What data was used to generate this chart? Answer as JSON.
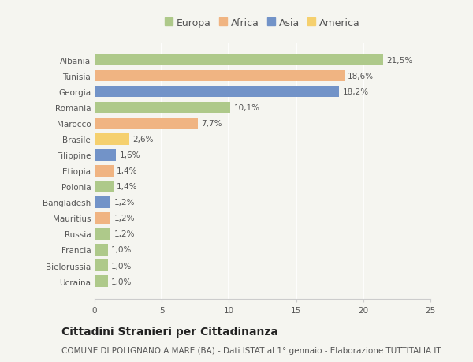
{
  "categories": [
    "Albania",
    "Tunisia",
    "Georgia",
    "Romania",
    "Marocco",
    "Brasile",
    "Filippine",
    "Etiopia",
    "Polonia",
    "Bangladesh",
    "Mauritius",
    "Russia",
    "Francia",
    "Bielorussia",
    "Ucraina"
  ],
  "values": [
    21.5,
    18.6,
    18.2,
    10.1,
    7.7,
    2.6,
    1.6,
    1.4,
    1.4,
    1.2,
    1.2,
    1.2,
    1.0,
    1.0,
    1.0
  ],
  "labels": [
    "21,5%",
    "18,6%",
    "18,2%",
    "10,1%",
    "7,7%",
    "2,6%",
    "1,6%",
    "1,4%",
    "1,4%",
    "1,2%",
    "1,2%",
    "1,2%",
    "1,0%",
    "1,0%",
    "1,0%"
  ],
  "continents": [
    "Europa",
    "Africa",
    "Asia",
    "Europa",
    "Africa",
    "America",
    "Asia",
    "Africa",
    "Europa",
    "Asia",
    "Africa",
    "Europa",
    "Europa",
    "Europa",
    "Europa"
  ],
  "colors": {
    "Europa": "#aec98a",
    "Africa": "#f0b482",
    "Asia": "#7293c8",
    "America": "#f5d06e"
  },
  "legend_order": [
    "Europa",
    "Africa",
    "Asia",
    "America"
  ],
  "xlim": [
    0,
    25
  ],
  "xticks": [
    0,
    5,
    10,
    15,
    20,
    25
  ],
  "title": "Cittadini Stranieri per Cittadinanza",
  "subtitle": "COMUNE DI POLIGNANO A MARE (BA) - Dati ISTAT al 1° gennaio - Elaborazione TUTTITALIA.IT",
  "bg_color": "#f5f5f0",
  "grid_color": "#ffffff",
  "bar_height": 0.72,
  "title_fontsize": 10,
  "subtitle_fontsize": 7.5,
  "label_fontsize": 7.5,
  "tick_fontsize": 7.5,
  "legend_fontsize": 9
}
